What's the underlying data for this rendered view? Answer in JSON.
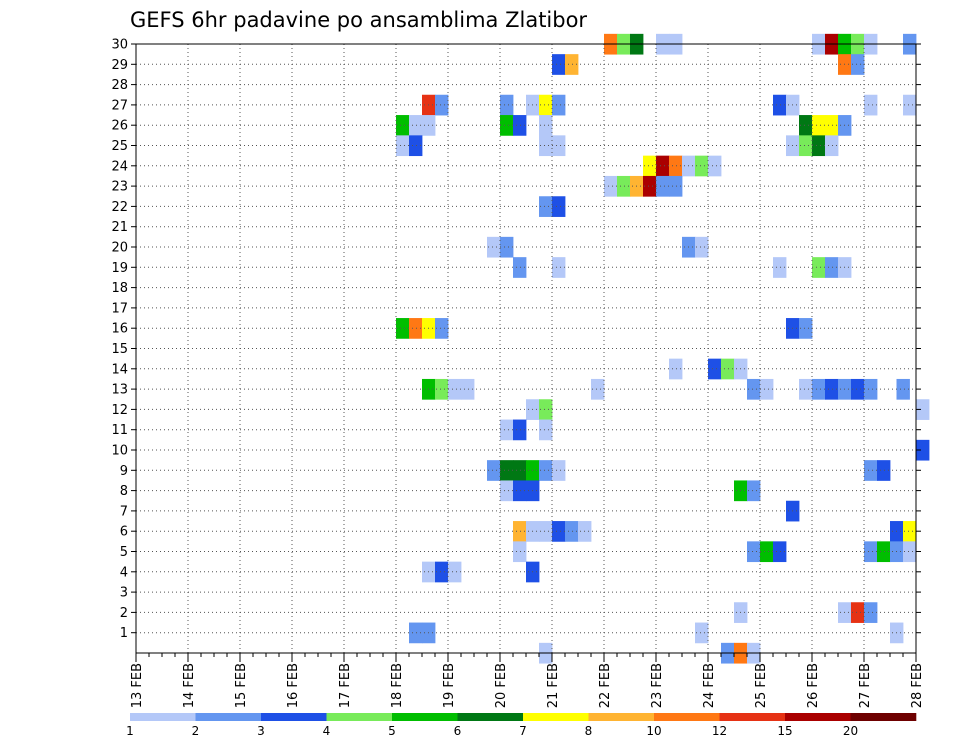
{
  "chart_data": {
    "type": "heatmap",
    "title": "GEFS 6hr padavine po ansamblima Zlatibor",
    "x_tick_labels": [
      "13 FEB",
      "14 FEB",
      "15 FEB",
      "16 FEB",
      "17 FEB",
      "18 FEB",
      "19 FEB",
      "20 FEB",
      "21 FEB",
      "22 FEB",
      "23 FEB",
      "24 FEB",
      "25 FEB",
      "26 FEB",
      "27 FEB",
      "28 FEB"
    ],
    "y_tick_labels": [
      "1",
      "2",
      "3",
      "4",
      "5",
      "6",
      "7",
      "8",
      "9",
      "10",
      "11",
      "12",
      "13",
      "14",
      "15",
      "16",
      "17",
      "18",
      "19",
      "20",
      "21",
      "22",
      "23",
      "24",
      "25",
      "26",
      "27",
      "28",
      "29",
      "30"
    ],
    "xlim": [
      "13 FEB",
      "28 FEB"
    ],
    "ylim": [
      0,
      30
    ],
    "grid": true,
    "legend_position": "bottom",
    "colorbar": {
      "labels": [
        "1",
        "2",
        "3",
        "4",
        "5",
        "6",
        "7",
        "8",
        "10",
        "12",
        "15",
        "20"
      ],
      "colors": [
        "#b4c8f8",
        "#6496f0",
        "#1e50e6",
        "#78eb5a",
        "#00be00",
        "#007814",
        "#ffff00",
        "#ffb432",
        "#ff7814",
        "#e63214",
        "#aa0000",
        "#6e0000"
      ]
    },
    "cells": [
      [
        30,
        22.0,
        9
      ],
      [
        30,
        22.25,
        4
      ],
      [
        30,
        22.5,
        6
      ],
      [
        30,
        23.0,
        1
      ],
      [
        30,
        23.25,
        1
      ],
      [
        30,
        26.0,
        1
      ],
      [
        30,
        26.25,
        11
      ],
      [
        30,
        26.5,
        5
      ],
      [
        30,
        26.75,
        4
      ],
      [
        30,
        27.0,
        1
      ],
      [
        30,
        27.75,
        2
      ],
      [
        29,
        21.0,
        3
      ],
      [
        29,
        21.25,
        8
      ],
      [
        29,
        26.5,
        9
      ],
      [
        29,
        26.75,
        2
      ],
      [
        27,
        18.5,
        10
      ],
      [
        27,
        18.75,
        2
      ],
      [
        27,
        20.0,
        2
      ],
      [
        27,
        20.5,
        1
      ],
      [
        27,
        20.75,
        7
      ],
      [
        27,
        21.0,
        2
      ],
      [
        27,
        25.25,
        3
      ],
      [
        27,
        25.5,
        1
      ],
      [
        27,
        27.0,
        1
      ],
      [
        27,
        27.75,
        1
      ],
      [
        26,
        18.0,
        5
      ],
      [
        26,
        18.25,
        1
      ],
      [
        26,
        18.5,
        1
      ],
      [
        26,
        20.0,
        5
      ],
      [
        26,
        20.25,
        3
      ],
      [
        26,
        20.75,
        1
      ],
      [
        26,
        25.75,
        6
      ],
      [
        26,
        26.0,
        7
      ],
      [
        26,
        26.25,
        7
      ],
      [
        26,
        26.5,
        2
      ],
      [
        25,
        18.0,
        1
      ],
      [
        25,
        18.25,
        3
      ],
      [
        25,
        20.75,
        1
      ],
      [
        25,
        21.0,
        1
      ],
      [
        25,
        25.5,
        1
      ],
      [
        25,
        25.75,
        4
      ],
      [
        25,
        26.0,
        6
      ],
      [
        25,
        26.25,
        1
      ],
      [
        24,
        22.75,
        7
      ],
      [
        24,
        23.0,
        11
      ],
      [
        24,
        23.25,
        9
      ],
      [
        24,
        23.5,
        1
      ],
      [
        24,
        23.75,
        4
      ],
      [
        24,
        24.0,
        1
      ],
      [
        23,
        22.0,
        1
      ],
      [
        23,
        22.25,
        4
      ],
      [
        23,
        22.5,
        8
      ],
      [
        23,
        22.75,
        11
      ],
      [
        23,
        23.0,
        2
      ],
      [
        23,
        23.25,
        2
      ],
      [
        22,
        20.75,
        2
      ],
      [
        22,
        21.0,
        3
      ],
      [
        20,
        19.75,
        1
      ],
      [
        20,
        20.0,
        2
      ],
      [
        20,
        23.5,
        2
      ],
      [
        20,
        23.75,
        1
      ],
      [
        19,
        20.25,
        2
      ],
      [
        19,
        21.0,
        1
      ],
      [
        19,
        25.25,
        1
      ],
      [
        19,
        26.0,
        4
      ],
      [
        19,
        26.25,
        2
      ],
      [
        19,
        26.5,
        1
      ],
      [
        16,
        18.0,
        5
      ],
      [
        16,
        18.25,
        9
      ],
      [
        16,
        18.5,
        7
      ],
      [
        16,
        18.75,
        2
      ],
      [
        16,
        25.5,
        3
      ],
      [
        16,
        25.75,
        2
      ],
      [
        14,
        23.25,
        1
      ],
      [
        14,
        24.0,
        3
      ],
      [
        14,
        24.25,
        4
      ],
      [
        14,
        24.5,
        1
      ],
      [
        13,
        18.5,
        5
      ],
      [
        13,
        18.75,
        4
      ],
      [
        13,
        19.0,
        1
      ],
      [
        13,
        19.25,
        1
      ],
      [
        13,
        21.75,
        1
      ],
      [
        13,
        24.75,
        2
      ],
      [
        13,
        25.0,
        1
      ],
      [
        13,
        25.75,
        1
      ],
      [
        13,
        26.0,
        2
      ],
      [
        13,
        26.25,
        3
      ],
      [
        13,
        26.5,
        2
      ],
      [
        13,
        26.75,
        3
      ],
      [
        13,
        27.0,
        2
      ],
      [
        13,
        27.625,
        2
      ],
      [
        12,
        20.5,
        1
      ],
      [
        12,
        20.75,
        4
      ],
      [
        12,
        28.0,
        1
      ],
      [
        11,
        20.0,
        1
      ],
      [
        11,
        20.25,
        3
      ],
      [
        11,
        20.75,
        1
      ],
      [
        10,
        28.0,
        3
      ],
      [
        9,
        19.75,
        2
      ],
      [
        9,
        20.0,
        6
      ],
      [
        9,
        20.25,
        6
      ],
      [
        9,
        20.5,
        5
      ],
      [
        9,
        20.75,
        2
      ],
      [
        9,
        21.0,
        1
      ],
      [
        9,
        27.0,
        2
      ],
      [
        9,
        27.25,
        3
      ],
      [
        8,
        20.0,
        1
      ],
      [
        8,
        20.25,
        3
      ],
      [
        8,
        20.5,
        3
      ],
      [
        8,
        24.5,
        5
      ],
      [
        8,
        24.75,
        2
      ],
      [
        7,
        25.5,
        3
      ],
      [
        6,
        20.25,
        8
      ],
      [
        6,
        20.5,
        1
      ],
      [
        6,
        20.75,
        1
      ],
      [
        6,
        21.0,
        3
      ],
      [
        6,
        21.25,
        2
      ],
      [
        6,
        21.5,
        1
      ],
      [
        6,
        27.5,
        3
      ],
      [
        6,
        27.75,
        7
      ],
      [
        5,
        20.25,
        1
      ],
      [
        5,
        24.75,
        2
      ],
      [
        5,
        25.0,
        5
      ],
      [
        5,
        25.25,
        3
      ],
      [
        5,
        27.0,
        2
      ],
      [
        5,
        27.25,
        5
      ],
      [
        5,
        27.5,
        2
      ],
      [
        5,
        27.75,
        1
      ],
      [
        4,
        18.5,
        1
      ],
      [
        4,
        18.75,
        3
      ],
      [
        4,
        19.0,
        1
      ],
      [
        4,
        20.5,
        3
      ],
      [
        2,
        24.5,
        1
      ],
      [
        2,
        26.5,
        1
      ],
      [
        2,
        26.75,
        10
      ],
      [
        2,
        27.0,
        2
      ],
      [
        1,
        18.25,
        2
      ],
      [
        1,
        18.5,
        2
      ],
      [
        1,
        23.75,
        1
      ],
      [
        1,
        27.5,
        1
      ],
      [
        0,
        20.75,
        1
      ],
      [
        0,
        24.25,
        2
      ],
      [
        0,
        24.5,
        9
      ],
      [
        0,
        24.75,
        1
      ]
    ]
  }
}
